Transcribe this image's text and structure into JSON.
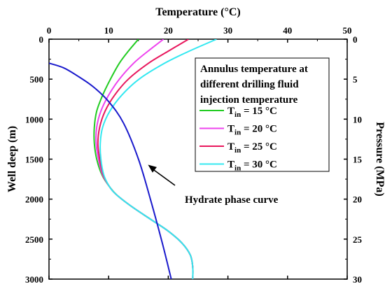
{
  "chart_data": {
    "type": "line",
    "top_axis": {
      "label": "Temperature (°C)",
      "range": [
        0,
        50
      ],
      "ticks": [
        "0",
        "10",
        "20",
        "30",
        "40",
        "50"
      ]
    },
    "left_axis": {
      "label": "Well deep (m)",
      "range": [
        0,
        3000
      ],
      "ticks": [
        "0",
        "500",
        "1000",
        "1500",
        "2000",
        "2500",
        "3000"
      ]
    },
    "right_axis": {
      "label": "Pressure (MPa)",
      "range": [
        0,
        30
      ],
      "ticks": [
        "0",
        "5",
        "10",
        "15",
        "20",
        "25",
        "30"
      ]
    },
    "legend": {
      "title_lines": [
        "Annulus temperature at",
        "different drilling fluid",
        "injection temperature"
      ],
      "position": "top-right"
    },
    "series": [
      {
        "name": "T_in = 15 °C",
        "label_main": "T",
        "label_sub": "in",
        "label_rest": " = 15 °C",
        "color": "#22cc22",
        "x": [
          15.0,
          13.3,
          11.8,
          10.3,
          9.0,
          8.0,
          7.6,
          7.6,
          8.0,
          8.9,
          10.2,
          11.4,
          14.0,
          17.0,
          20.0,
          22.3,
          23.7,
          24.1,
          24.1
        ],
        "y": [
          0,
          150,
          300,
          500,
          700,
          900,
          1100,
          1300,
          1500,
          1700,
          1850,
          1950,
          2100,
          2250,
          2400,
          2550,
          2700,
          2850,
          3000
        ]
      },
      {
        "name": "T_in = 20 °C",
        "label_main": "T",
        "label_sub": "in",
        "label_rest": " = 20 °C",
        "color": "#ee44ee",
        "x": [
          19.2,
          16.6,
          14.2,
          11.8,
          10.0,
          8.7,
          8.0,
          7.9,
          8.3,
          9.0,
          10.2,
          11.4,
          14.0,
          17.0,
          20.0,
          22.3,
          23.7,
          24.1,
          24.1
        ],
        "y": [
          0,
          150,
          300,
          500,
          700,
          900,
          1100,
          1300,
          1500,
          1700,
          1850,
          1950,
          2100,
          2250,
          2400,
          2550,
          2700,
          2850,
          3000
        ]
      },
      {
        "name": "T_in = 25 °C",
        "label_main": "T",
        "label_sub": "in",
        "label_rest": " = 25 °C",
        "color": "#e8175d",
        "x": [
          23.4,
          20.0,
          16.7,
          13.3,
          11.0,
          9.4,
          8.5,
          8.2,
          8.5,
          9.1,
          10.2,
          11.4,
          14.0,
          17.0,
          20.0,
          22.3,
          23.7,
          24.1,
          24.1
        ],
        "y": [
          0,
          150,
          300,
          500,
          700,
          900,
          1100,
          1300,
          1500,
          1700,
          1850,
          1950,
          2100,
          2250,
          2400,
          2550,
          2700,
          2850,
          3000
        ]
      },
      {
        "name": "T_in = 30 °C",
        "label_main": "T",
        "label_sub": "in",
        "label_rest": " = 30 °C",
        "color": "#33e8f0",
        "x": [
          28.1,
          23.5,
          19.4,
          15.1,
          12.2,
          10.2,
          9.0,
          8.6,
          8.7,
          9.2,
          10.2,
          11.4,
          14.0,
          17.0,
          20.0,
          22.3,
          23.7,
          24.1,
          24.1
        ],
        "y": [
          0,
          150,
          300,
          500,
          700,
          900,
          1100,
          1300,
          1500,
          1700,
          1850,
          1950,
          2100,
          2250,
          2400,
          2550,
          2700,
          2850,
          3000
        ]
      },
      {
        "name": "Hydrate phase curve",
        "color": "#1a1acc",
        "x": [
          0.0,
          2.5,
          5.0,
          7.5,
          10.0,
          12.5,
          15.0,
          17.0,
          19.0,
          20.5
        ],
        "y": [
          300,
          360,
          470,
          600,
          780,
          1050,
          1500,
          2000,
          2550,
          3000
        ]
      }
    ],
    "annotations": [
      {
        "text": "Hydrate phase curve",
        "arrow_to": {
          "x": 16.6,
          "y": 1570
        }
      }
    ],
    "grid": false
  }
}
